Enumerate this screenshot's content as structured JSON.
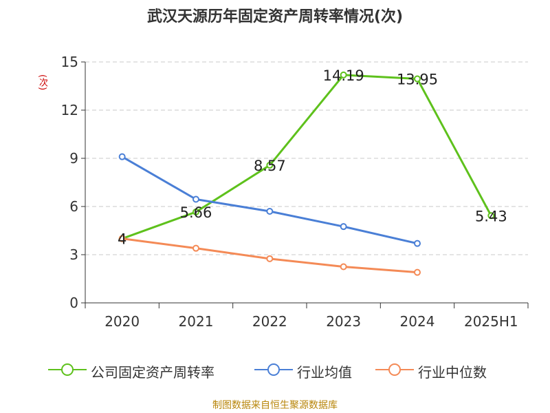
{
  "title": "武汉天源历年固定资产周转率情况(次)",
  "y_unit": "(次)",
  "source": "制图数据来自恒生聚源数据库",
  "colors": {
    "company": "#5ec11c",
    "industry_avg": "#4a7fd6",
    "industry_median": "#f48a56",
    "grid": "#c8c8c8",
    "axis": "#333333"
  },
  "chart_data": {
    "type": "line",
    "title": "武汉天源历年固定资产周转率情况(次)",
    "ylabel": "(次)",
    "categories": [
      "2020",
      "2021",
      "2022",
      "2023",
      "2024",
      "2025H1"
    ],
    "yticks": [
      "0",
      "3",
      "6",
      "9",
      "12",
      "15"
    ],
    "ylim": [
      0,
      15
    ],
    "grid": true,
    "legend_position": "bottom",
    "series": [
      {
        "name": "公司固定资产周转率",
        "values": [
          4,
          5.66,
          8.57,
          14.19,
          13.95,
          5.43
        ],
        "labels": [
          "4",
          "5.66",
          "8.57",
          "14.19",
          "13.95",
          "5.43"
        ],
        "color_key": "company"
      },
      {
        "name": "行业均值",
        "values": [
          9.1,
          6.45,
          5.7,
          4.75,
          3.7,
          null
        ],
        "color_key": "industry_avg"
      },
      {
        "name": "行业中位数",
        "values": [
          4.0,
          3.4,
          2.75,
          2.25,
          1.9,
          null
        ],
        "color_key": "industry_median"
      }
    ]
  }
}
